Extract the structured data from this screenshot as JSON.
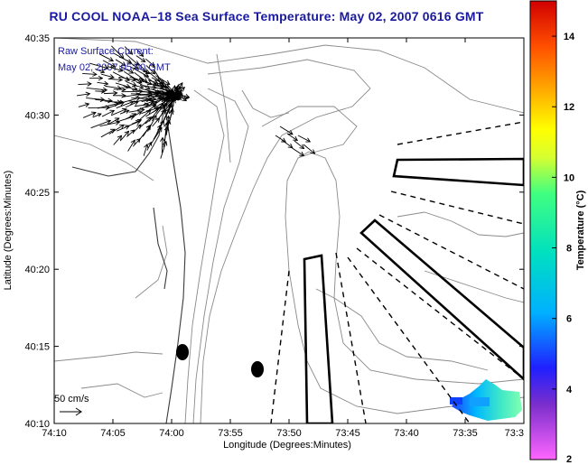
{
  "title": "RU COOL  NOAA–18  Sea Surface Temperature:  May 02, 2007 0616 GMT",
  "overlay": {
    "line1": "Raw Surface Current:",
    "line2": "May 02, 2007 05:00 GMT"
  },
  "scale_label": "50 cm/s",
  "axes": {
    "xlabel": "Longitude (Degrees:Minutes)",
    "ylabel": "Latitude (Degrees:Minutes)",
    "xticks": [
      "74:10",
      "74:05",
      "74:00",
      "73:55",
      "73:50",
      "73:45",
      "73:40",
      "73:35",
      "73:3"
    ],
    "yticks": [
      "40:35",
      "40:30",
      "40:25",
      "40:20",
      "40:15",
      "40:10"
    ]
  },
  "colorbar": {
    "label": "Temperature (°C)",
    "ticks": [
      "14",
      "12",
      "10",
      "8",
      "6",
      "4",
      "2"
    ],
    "min": 2,
    "max": 15
  },
  "colors": {
    "title": "#1a1aa0",
    "vectors": "#000000",
    "contours": "#8a8a8a"
  }
}
